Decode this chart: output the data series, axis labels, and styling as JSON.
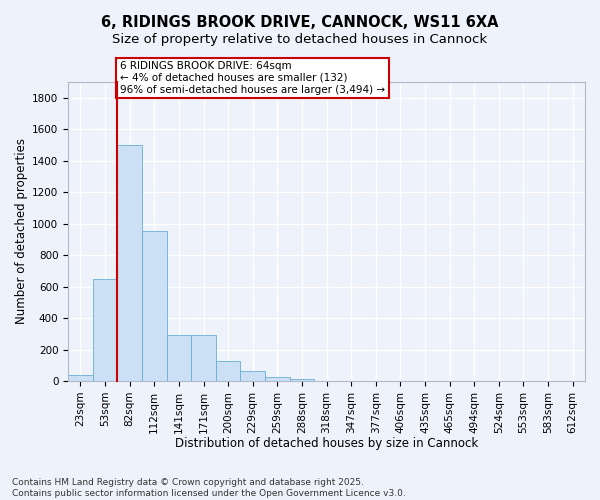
{
  "title_line1": "6, RIDINGS BROOK DRIVE, CANNOCK, WS11 6XA",
  "title_line2": "Size of property relative to detached houses in Cannock",
  "xlabel": "Distribution of detached houses by size in Cannock",
  "ylabel": "Number of detached properties",
  "bar_color": "#cce0f5",
  "bar_edge_color": "#6aaed6",
  "annotation_line_color": "#cc0000",
  "annotation_box_edge_color": "#cc0000",
  "annotation_text": "6 RIDINGS BROOK DRIVE: 64sqm\n← 4% of detached houses are smaller (132)\n96% of semi-detached houses are larger (3,494) →",
  "red_line_x": 1.5,
  "categories": [
    "23sqm",
    "53sqm",
    "82sqm",
    "112sqm",
    "141sqm",
    "171sqm",
    "200sqm",
    "229sqm",
    "259sqm",
    "288sqm",
    "318sqm",
    "347sqm",
    "377sqm",
    "406sqm",
    "435sqm",
    "465sqm",
    "494sqm",
    "524sqm",
    "553sqm",
    "583sqm",
    "612sqm"
  ],
  "values": [
    40,
    650,
    1500,
    950,
    290,
    290,
    130,
    65,
    25,
    10,
    0,
    0,
    0,
    0,
    0,
    0,
    0,
    0,
    0,
    0,
    0
  ],
  "ylim": [
    0,
    1900
  ],
  "yticks": [
    0,
    200,
    400,
    600,
    800,
    1000,
    1200,
    1400,
    1600,
    1800
  ],
  "footer_text": "Contains HM Land Registry data © Crown copyright and database right 2025.\nContains public sector information licensed under the Open Government Licence v3.0.",
  "background_color": "#eef2fa",
  "grid_color": "#ffffff",
  "title_fontsize": 10.5,
  "subtitle_fontsize": 9.5,
  "axis_label_fontsize": 8.5,
  "tick_fontsize": 7.5,
  "annotation_fontsize": 7.5,
  "footer_fontsize": 6.5
}
